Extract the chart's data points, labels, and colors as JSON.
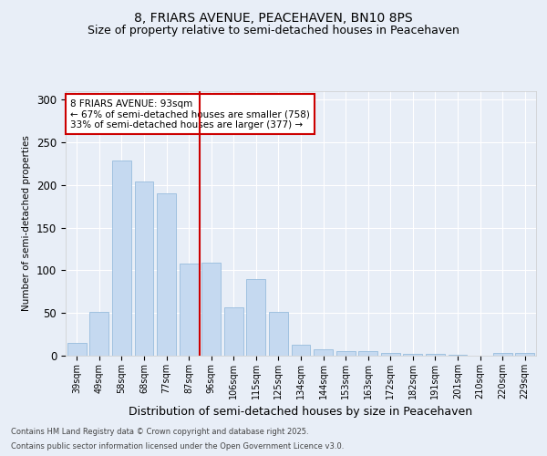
{
  "title1": "8, FRIARS AVENUE, PEACEHAVEN, BN10 8PS",
  "title2": "Size of property relative to semi-detached houses in Peacehaven",
  "xlabel": "Distribution of semi-detached houses by size in Peacehaven",
  "ylabel": "Number of semi-detached properties",
  "categories": [
    "39sqm",
    "49sqm",
    "58sqm",
    "68sqm",
    "77sqm",
    "87sqm",
    "96sqm",
    "106sqm",
    "115sqm",
    "125sqm",
    "134sqm",
    "144sqm",
    "153sqm",
    "163sqm",
    "172sqm",
    "182sqm",
    "191sqm",
    "201sqm",
    "210sqm",
    "220sqm",
    "229sqm"
  ],
  "values": [
    15,
    51,
    229,
    204,
    190,
    108,
    109,
    57,
    90,
    51,
    13,
    8,
    5,
    5,
    3,
    2,
    2,
    1,
    0,
    3,
    3
  ],
  "bar_color": "#c5d9f0",
  "bar_edge_color": "#8ab4d8",
  "vline_color": "#cc0000",
  "annotation_title": "8 FRIARS AVENUE: 93sqm",
  "annotation_line1": "← 67% of semi-detached houses are smaller (758)",
  "annotation_line2": "33% of semi-detached houses are larger (377) →",
  "annotation_box_color": "#ffffff",
  "annotation_box_edge": "#cc0000",
  "footnote1": "Contains HM Land Registry data © Crown copyright and database right 2025.",
  "footnote2": "Contains public sector information licensed under the Open Government Licence v3.0.",
  "bg_color": "#e8eef7",
  "plot_bg_color": "#e8eef7",
  "ylim": [
    0,
    310
  ],
  "title_fontsize": 10,
  "subtitle_fontsize": 9
}
